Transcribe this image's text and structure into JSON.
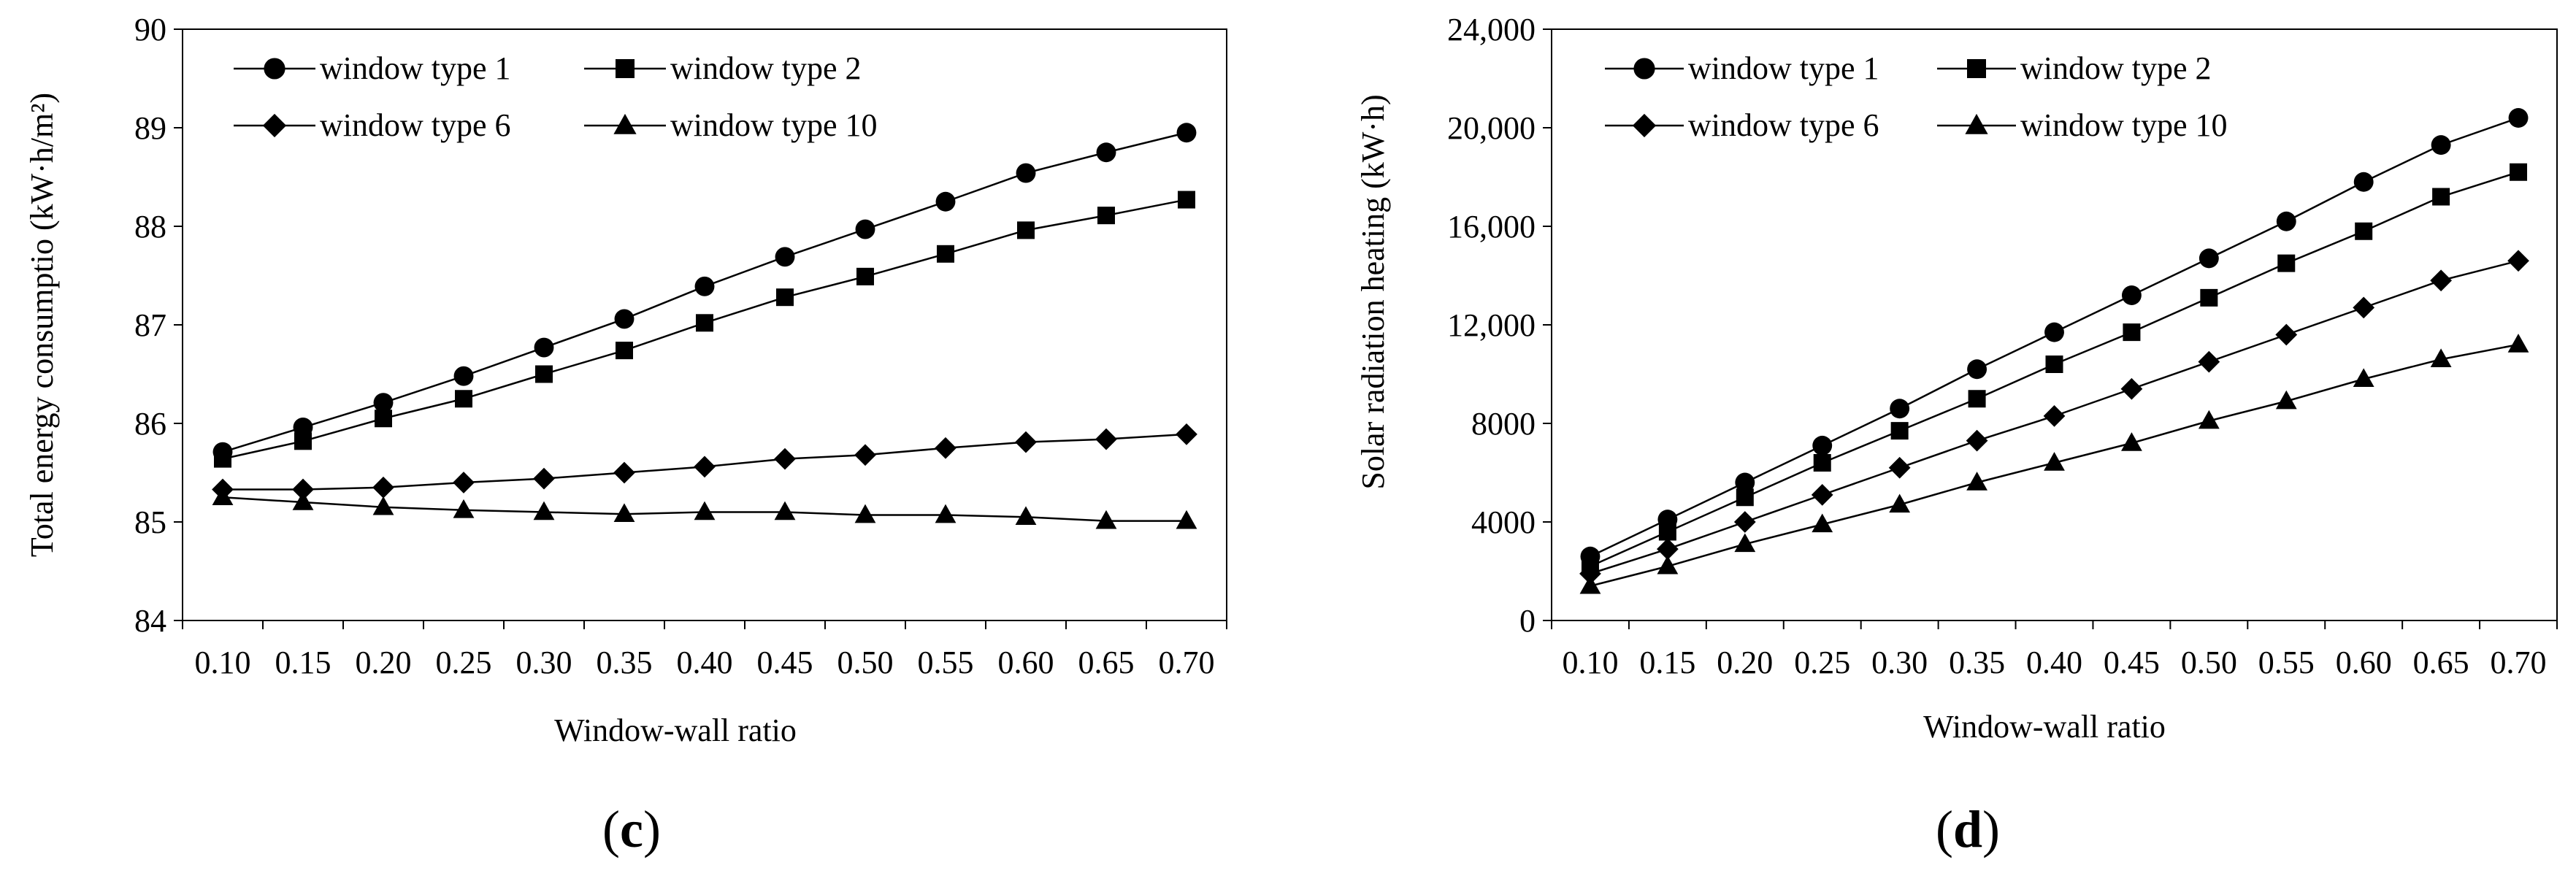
{
  "chart_data": [
    {
      "id": "c",
      "type": "line",
      "panel_label": "c",
      "xlabel": "Window-wall ratio",
      "ylabel": "Total energy consumptio (kW·h/m²)",
      "categories": [
        "0.10",
        "0.15",
        "0.20",
        "0.25",
        "0.30",
        "0.35",
        "0.40",
        "0.45",
        "0.50",
        "0.55",
        "0.60",
        "0.65",
        "0.70"
      ],
      "ylim": [
        84,
        90
      ],
      "yticks": [
        84,
        85,
        86,
        87,
        88,
        89,
        90
      ],
      "ytick_labels": [
        "84",
        "85",
        "86",
        "87",
        "88",
        "89",
        "90"
      ],
      "legend_position": "top-left",
      "series": [
        {
          "name": "window type 1",
          "marker": "circle",
          "values": [
            85.71,
            85.96,
            86.21,
            86.48,
            86.77,
            87.06,
            87.39,
            87.69,
            87.97,
            88.25,
            88.54,
            88.75,
            88.95
          ]
        },
        {
          "name": "window type 2",
          "marker": "square",
          "values": [
            85.64,
            85.82,
            86.05,
            86.25,
            86.5,
            86.74,
            87.02,
            87.28,
            87.49,
            87.72,
            87.96,
            88.11,
            88.27
          ]
        },
        {
          "name": "window type 6",
          "marker": "diamond",
          "values": [
            85.33,
            85.33,
            85.35,
            85.4,
            85.44,
            85.5,
            85.56,
            85.64,
            85.68,
            85.75,
            85.81,
            85.84,
            85.89
          ]
        },
        {
          "name": "window type 10",
          "marker": "triangle",
          "values": [
            85.25,
            85.2,
            85.15,
            85.12,
            85.1,
            85.08,
            85.1,
            85.1,
            85.07,
            85.07,
            85.05,
            85.01,
            85.01
          ]
        }
      ]
    },
    {
      "id": "d",
      "type": "line",
      "panel_label": "d",
      "xlabel": "Window-wall ratio",
      "ylabel": "Solar radiation heating (kW·h)",
      "categories": [
        "0.10",
        "0.15",
        "0.20",
        "0.25",
        "0.30",
        "0.35",
        "0.40",
        "0.45",
        "0.50",
        "0.55",
        "0.60",
        "0.65",
        "0.70"
      ],
      "ylim": [
        0,
        24000
      ],
      "yticks": [
        0,
        4000,
        8000,
        12000,
        16000,
        20000,
        24000
      ],
      "ytick_labels": [
        "0",
        "4000",
        "8000",
        "12,000",
        "16,000",
        "20,000",
        "24,000"
      ],
      "legend_position": "top-left",
      "series": [
        {
          "name": "window type 1",
          "marker": "circle",
          "values": [
            2600,
            4100,
            5600,
            7100,
            8600,
            10200,
            11700,
            13200,
            14700,
            16200,
            17800,
            19300,
            20400
          ]
        },
        {
          "name": "window type 2",
          "marker": "square",
          "values": [
            2200,
            3600,
            5000,
            6400,
            7700,
            9000,
            10400,
            11700,
            13100,
            14500,
            15800,
            17200,
            18200
          ]
        },
        {
          "name": "window type 6",
          "marker": "diamond",
          "values": [
            1900,
            2900,
            4000,
            5100,
            6200,
            7300,
            8300,
            9400,
            10500,
            11600,
            12700,
            13800,
            14600
          ]
        },
        {
          "name": "window type 10",
          "marker": "triangle",
          "values": [
            1400,
            2200,
            3100,
            3900,
            4700,
            5600,
            6400,
            7200,
            8100,
            8900,
            9800,
            10600,
            11200
          ]
        }
      ]
    }
  ]
}
